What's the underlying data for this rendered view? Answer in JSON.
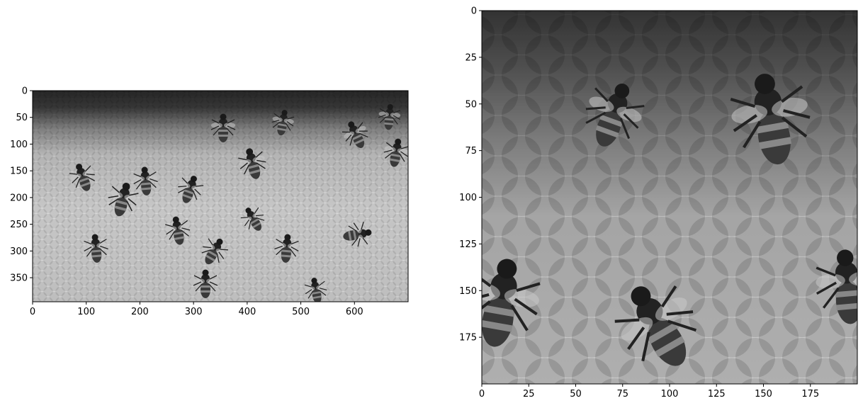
{
  "chart_data": [
    {
      "type": "image",
      "colormap": "gray",
      "image_size": {
        "width": 700,
        "height": 395
      },
      "xlim": [
        0,
        700
      ],
      "ylim": [
        395,
        0
      ],
      "xticks": [
        0,
        100,
        200,
        300,
        400,
        500,
        600
      ],
      "yticks": [
        0,
        50,
        100,
        150,
        200,
        250,
        300,
        350
      ],
      "xtick_labels": [
        "0",
        "100",
        "200",
        "300",
        "400",
        "500",
        "600"
      ],
      "ytick_labels": [
        "0",
        "50",
        "100",
        "150",
        "200",
        "250",
        "300",
        "350"
      ],
      "title": "",
      "xlabel": "",
      "ylabel": "",
      "grid": false,
      "content": "grayscale photo of honeybees on honeycomb (full frame)"
    },
    {
      "type": "image",
      "colormap": "gray",
      "image_size": {
        "width": 200,
        "height": 200
      },
      "xlim": [
        0,
        200
      ],
      "ylim": [
        200,
        0
      ],
      "xticks": [
        0,
        25,
        50,
        75,
        100,
        125,
        150,
        175
      ],
      "yticks": [
        0,
        25,
        50,
        75,
        100,
        125,
        150,
        175
      ],
      "xtick_labels": [
        "0",
        "25",
        "50",
        "75",
        "100",
        "125",
        "150",
        "175"
      ],
      "ytick_labels": [
        "0",
        "25",
        "50",
        "75",
        "100",
        "125",
        "150",
        "175"
      ],
      "title": "",
      "xlabel": "",
      "ylabel": "",
      "grid": false,
      "content": "grayscale 200x200 crop of honeycomb with bees (zoomed)"
    }
  ]
}
